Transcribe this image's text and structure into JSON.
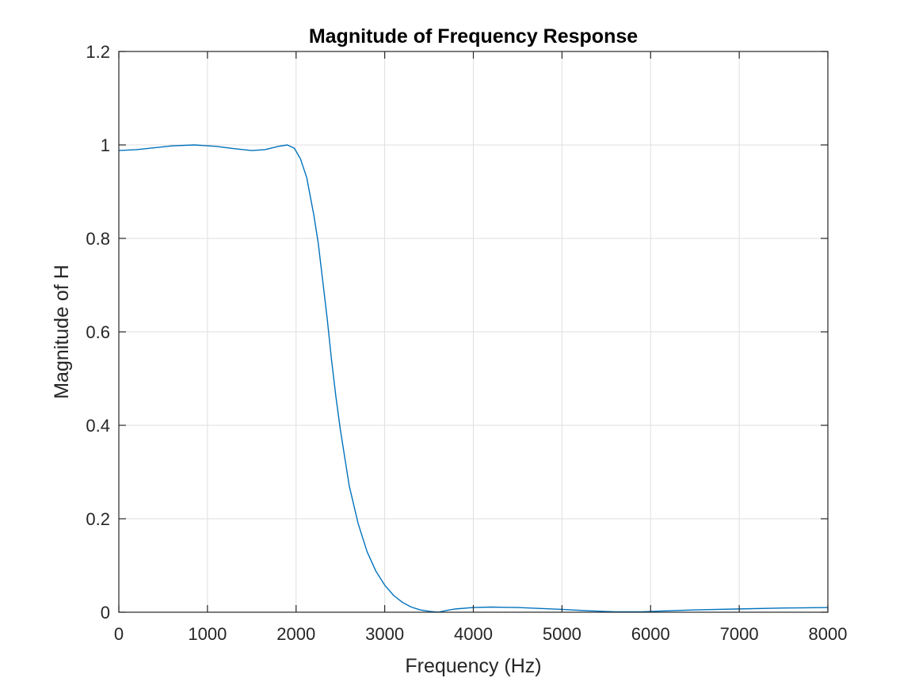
{
  "chart_data": {
    "type": "line",
    "title": "Magnitude of Frequency Response",
    "xlabel": "Frequency (Hz)",
    "ylabel": "Magnitude of H",
    "xlim": [
      0,
      8000
    ],
    "ylim": [
      0,
      1.2
    ],
    "grid": true,
    "xticks": [
      "0",
      "1000",
      "2000",
      "3000",
      "4000",
      "5000",
      "6000",
      "7000",
      "8000"
    ],
    "yticks": [
      "0",
      "0.2",
      "0.4",
      "0.6",
      "0.8",
      "1",
      "1.2"
    ],
    "line_color": "#0072bd",
    "series": [
      {
        "x": [
          0,
          200,
          400,
          600,
          850,
          1100,
          1300,
          1500,
          1650,
          1800,
          1900,
          1980,
          2050,
          2120,
          2200,
          2250,
          2300,
          2350,
          2400,
          2450,
          2500,
          2550,
          2600,
          2700,
          2800,
          2900,
          3000,
          3100,
          3200,
          3300,
          3400,
          3500,
          3600,
          3700,
          3800,
          4000,
          4200,
          4500,
          5000,
          5300,
          5600,
          5900,
          6200,
          6500,
          7000,
          7500,
          8000
        ],
        "y": [
          0.988,
          0.99,
          0.994,
          0.998,
          1.0,
          0.997,
          0.992,
          0.988,
          0.99,
          0.997,
          1.0,
          0.993,
          0.97,
          0.93,
          0.85,
          0.79,
          0.71,
          0.63,
          0.54,
          0.46,
          0.39,
          0.33,
          0.27,
          0.19,
          0.13,
          0.088,
          0.058,
          0.036,
          0.021,
          0.011,
          0.005,
          0.002,
          0.0,
          0.004,
          0.007,
          0.01,
          0.011,
          0.01,
          0.006,
          0.003,
          0.001,
          0.001,
          0.003,
          0.005,
          0.007,
          0.009,
          0.01
        ]
      }
    ]
  }
}
